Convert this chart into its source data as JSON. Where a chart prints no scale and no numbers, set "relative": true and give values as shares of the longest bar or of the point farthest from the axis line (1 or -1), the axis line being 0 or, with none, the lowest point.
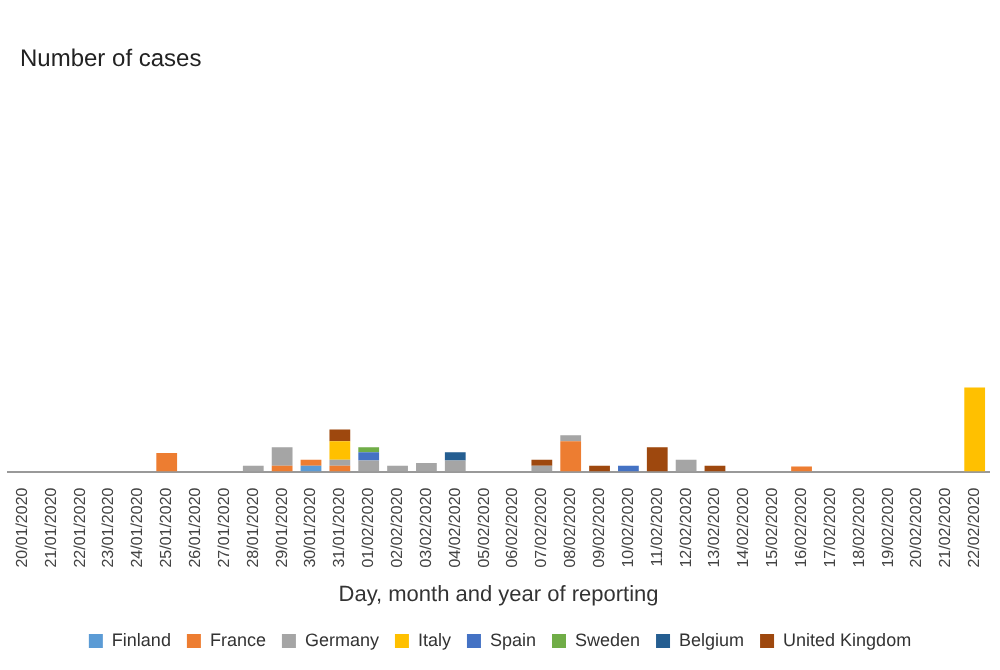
{
  "chart_data": {
    "type": "bar",
    "stacked": true,
    "relative": true,
    "annotations": [
      "Number of cases"
    ],
    "xlabel": "Day, month and year of reporting",
    "legend": "bottom",
    "grid": false,
    "categories": [
      "20/01/2020",
      "21/01/2020",
      "22/01/2020",
      "23/01/2020",
      "24/01/2020",
      "25/01/2020",
      "26/01/2020",
      "27/01/2020",
      "28/01/2020",
      "29/01/2020",
      "30/01/2020",
      "31/01/2020",
      "01/02/2020",
      "02/02/2020",
      "03/02/2020",
      "04/02/2020",
      "05/02/2020",
      "06/02/2020",
      "07/02/2020",
      "08/02/2020",
      "09/02/2020",
      "10/02/2020",
      "11/02/2020",
      "12/02/2020",
      "13/02/2020",
      "14/02/2020",
      "15/02/2020",
      "16/02/2020",
      "17/02/2020",
      "18/02/2020",
      "19/02/2020",
      "20/02/2020",
      "21/02/2020",
      "22/02/2020"
    ],
    "series": [
      {
        "name": "Finland",
        "color": "#5b9bd5",
        "values": [
          0,
          0,
          0,
          0,
          0,
          0,
          0,
          0,
          0,
          0,
          0.07,
          0,
          0,
          0,
          0,
          0,
          0,
          0,
          0,
          0,
          0,
          0,
          0,
          0,
          0,
          0,
          0,
          0,
          0,
          0,
          0,
          0,
          0,
          0
        ]
      },
      {
        "name": "France",
        "color": "#ed7d31",
        "values": [
          0,
          0,
          0,
          0,
          0,
          0.22,
          0,
          0,
          0,
          0.07,
          0.07,
          0.07,
          0,
          0,
          0,
          0,
          0,
          0,
          0,
          0.36,
          0,
          0,
          0,
          0,
          0,
          0,
          0,
          0.06,
          0,
          0,
          0,
          0,
          0,
          0
        ]
      },
      {
        "name": "Germany",
        "color": "#a5a5a5",
        "values": [
          0,
          0,
          0,
          0,
          0,
          0,
          0,
          0,
          0.07,
          0.22,
          0,
          0.07,
          0.13,
          0.07,
          0.1,
          0.13,
          0,
          0,
          0.07,
          0.07,
          0,
          0,
          0,
          0.14,
          0,
          0,
          0,
          0,
          0,
          0,
          0,
          0,
          0,
          0
        ]
      },
      {
        "name": "Italy",
        "color": "#ffc000",
        "values": [
          0,
          0,
          0,
          0,
          0,
          0,
          0,
          0,
          0,
          0,
          0,
          0.22,
          0,
          0,
          0,
          0,
          0,
          0,
          0,
          0,
          0,
          0,
          0,
          0,
          0,
          0,
          0,
          0,
          0,
          0,
          0,
          0,
          0,
          1
        ]
      },
      {
        "name": "Spain",
        "color": "#4472c4",
        "values": [
          0,
          0,
          0,
          0,
          0,
          0,
          0,
          0,
          0,
          0,
          0,
          0,
          0.1,
          0,
          0,
          0,
          0,
          0,
          0,
          0,
          0,
          0.07,
          0,
          0,
          0,
          0,
          0,
          0,
          0,
          0,
          0,
          0,
          0,
          0
        ]
      },
      {
        "name": "Sweden",
        "color": "#70ad47",
        "values": [
          0,
          0,
          0,
          0,
          0,
          0,
          0,
          0,
          0,
          0,
          0,
          0,
          0.06,
          0,
          0,
          0,
          0,
          0,
          0,
          0,
          0,
          0,
          0,
          0,
          0,
          0,
          0,
          0,
          0,
          0,
          0,
          0,
          0,
          0
        ]
      },
      {
        "name": "Belgium",
        "color": "#255e91",
        "values": [
          0,
          0,
          0,
          0,
          0,
          0,
          0,
          0,
          0,
          0,
          0,
          0,
          0,
          0,
          0,
          0.1,
          0,
          0,
          0,
          0,
          0,
          0,
          0,
          0,
          0,
          0,
          0,
          0,
          0,
          0,
          0,
          0,
          0,
          0
        ]
      },
      {
        "name": "United Kingdom",
        "color": "#9e480e",
        "values": [
          0,
          0,
          0,
          0,
          0,
          0,
          0,
          0,
          0,
          0,
          0,
          0.14,
          0,
          0,
          0,
          0,
          0,
          0,
          0.07,
          0,
          0.07,
          0,
          0.29,
          0,
          0.07,
          0,
          0,
          0,
          0,
          0,
          0,
          0,
          0,
          0
        ]
      }
    ]
  }
}
